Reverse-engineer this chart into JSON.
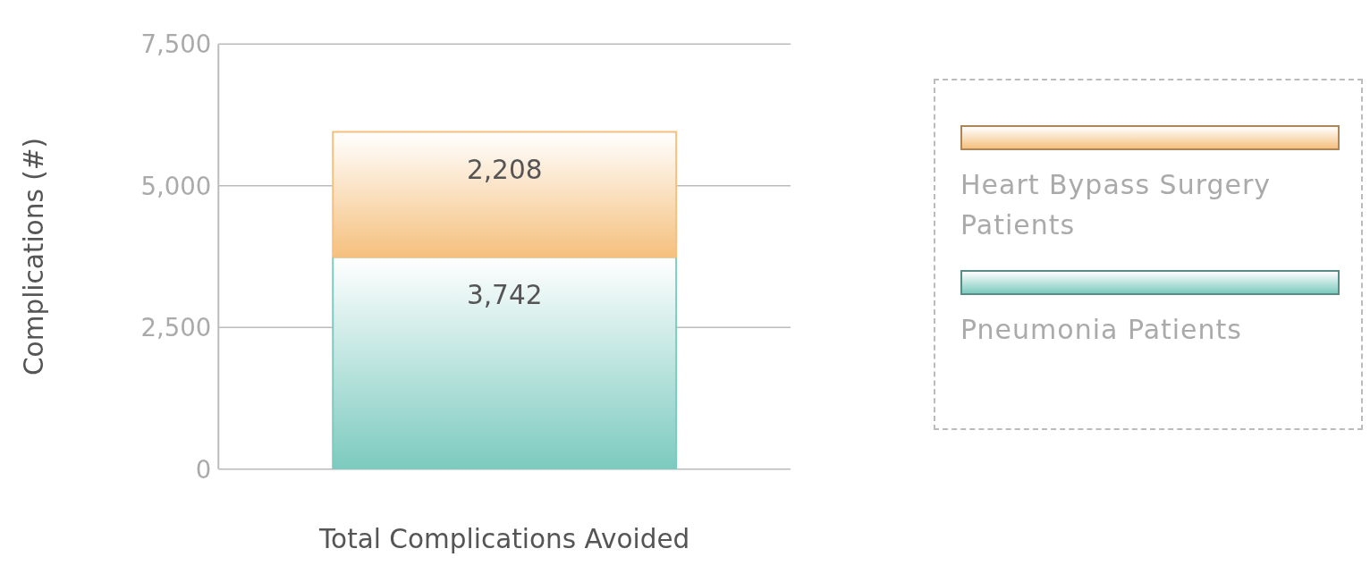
{
  "chart_data": {
    "type": "bar",
    "stacked": true,
    "ylabel": "Complications (#)",
    "categories": [
      "Total Complications Avoided"
    ],
    "series": [
      {
        "name": "Pneumonia Patients",
        "color": "#7ccabf",
        "values": [
          3742
        ],
        "value_labels": [
          "3,742"
        ]
      },
      {
        "name": "Heart Bypass Surgery Patients",
        "color": "#f5c07e",
        "values": [
          2208
        ],
        "value_labels": [
          "2,208"
        ]
      }
    ],
    "ylim": [
      0,
      7500
    ],
    "yticks": [
      0,
      {
        "value": 2500,
        "label": "2,500"
      },
      {
        "value": 5000,
        "label": "5,000"
      },
      {
        "value": 7500,
        "label": "7,500"
      }
    ],
    "grid": "y",
    "legend": "right"
  }
}
